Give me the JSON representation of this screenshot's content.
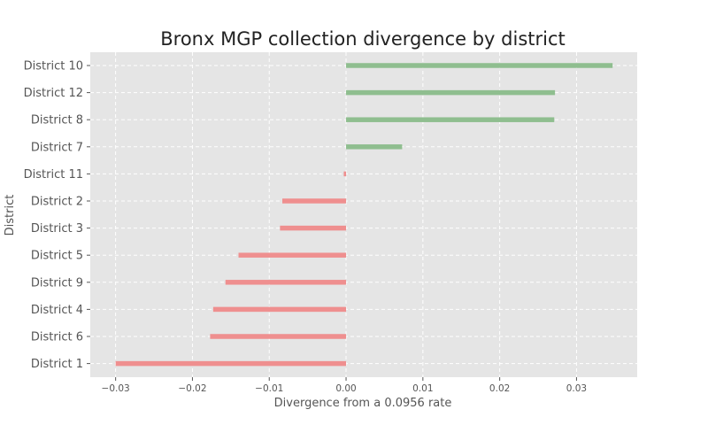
{
  "chart_data": {
    "type": "bar",
    "orientation": "horizontal",
    "title": "Bronx MGP collection divergence by district",
    "xlabel": "Divergence from a 0.0956 rate",
    "ylabel": "District",
    "categories": [
      "District 10",
      "District 12",
      "District 8",
      "District 7",
      "District 11",
      "District 2",
      "District 3",
      "District 5",
      "District 9",
      "District 4",
      "District 6",
      "District 1"
    ],
    "values": [
      0.0347,
      0.0272,
      0.0271,
      0.0073,
      -0.0003,
      -0.0083,
      -0.0086,
      -0.014,
      -0.0157,
      -0.0173,
      -0.0177,
      -0.03
    ],
    "xlim": [
      -0.0333,
      0.0379
    ],
    "xticks": [
      -0.03,
      -0.02,
      -0.01,
      0.0,
      0.01,
      0.02,
      0.03
    ],
    "xtick_labels": [
      "−0.03",
      "−0.02",
      "−0.01",
      "0.00",
      "0.01",
      "0.02",
      "0.03"
    ],
    "grid": true,
    "colors": {
      "positive": "#8fbe8f",
      "negative": "#ef8f8f",
      "plot_background": "#e5e5e5"
    }
  }
}
